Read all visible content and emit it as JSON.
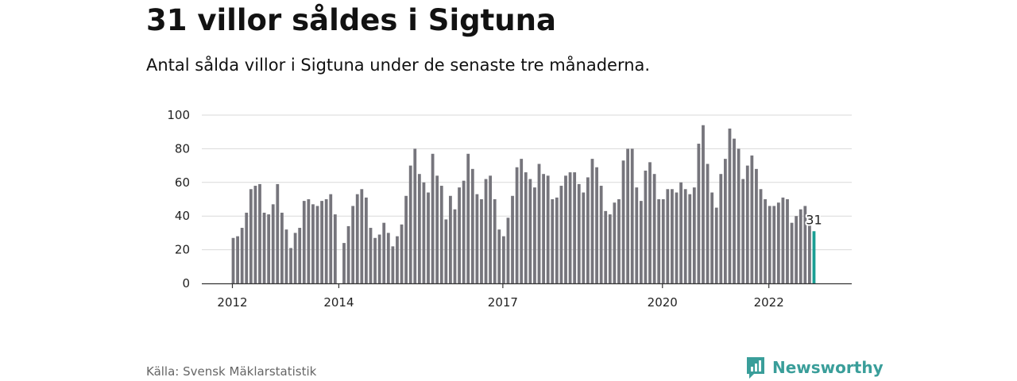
{
  "header": {
    "title": "31 villor såldes i Sigtuna",
    "subtitle": "Antal sålda villor i Sigtuna under de senaste tre månaderna."
  },
  "footer": {
    "source": "Källa: Svensk Mäklarstatistik",
    "brand": "Newsworthy",
    "brand_icon": "newsworthy-logo-icon"
  },
  "colors": {
    "bar": "#76757c",
    "highlight": "#1a9e93",
    "grid": "#d9d9d9",
    "axis": "#333333",
    "brand": "#3a9e9a"
  },
  "chart_data": {
    "type": "bar",
    "title": "31 villor såldes i Sigtuna",
    "subtitle": "Antal sålda villor i Sigtuna under de senaste tre månaderna.",
    "ylim": [
      0,
      100
    ],
    "yticks": [
      0,
      20,
      40,
      60,
      80,
      100
    ],
    "xticks": [
      "2012",
      "2014",
      "2017",
      "2020",
      "2022"
    ],
    "grid": true,
    "start_label": "2012",
    "highlight_label": "31",
    "series": [
      {
        "values": [
          27,
          28,
          33,
          42,
          56,
          58,
          59,
          42,
          41,
          47,
          59,
          42,
          32,
          21,
          30,
          33,
          49,
          50,
          47,
          46,
          49,
          50,
          53,
          41,
          0,
          24,
          34,
          46,
          53,
          56,
          51,
          33,
          27,
          29,
          36,
          30,
          22,
          28,
          35,
          52,
          70,
          80,
          65,
          60,
          54,
          77,
          64,
          58,
          38,
          52,
          44,
          57,
          61,
          77,
          68,
          53,
          50,
          62,
          64,
          50,
          32,
          28,
          39,
          52,
          69,
          74,
          66,
          62,
          57,
          71,
          65,
          64,
          50,
          51,
          58,
          64,
          66,
          66,
          59,
          54,
          63,
          74,
          69,
          58,
          43,
          41,
          48,
          50,
          73,
          80,
          80,
          57,
          49,
          67,
          72,
          65,
          50,
          50,
          56,
          56,
          54,
          60,
          56,
          53,
          57,
          83,
          94,
          71,
          54,
          45,
          65,
          74,
          92,
          86,
          80,
          62,
          70,
          76,
          68,
          56,
          50,
          46,
          46,
          48,
          51,
          50,
          36,
          40,
          44,
          46,
          35,
          31
        ]
      }
    ]
  }
}
